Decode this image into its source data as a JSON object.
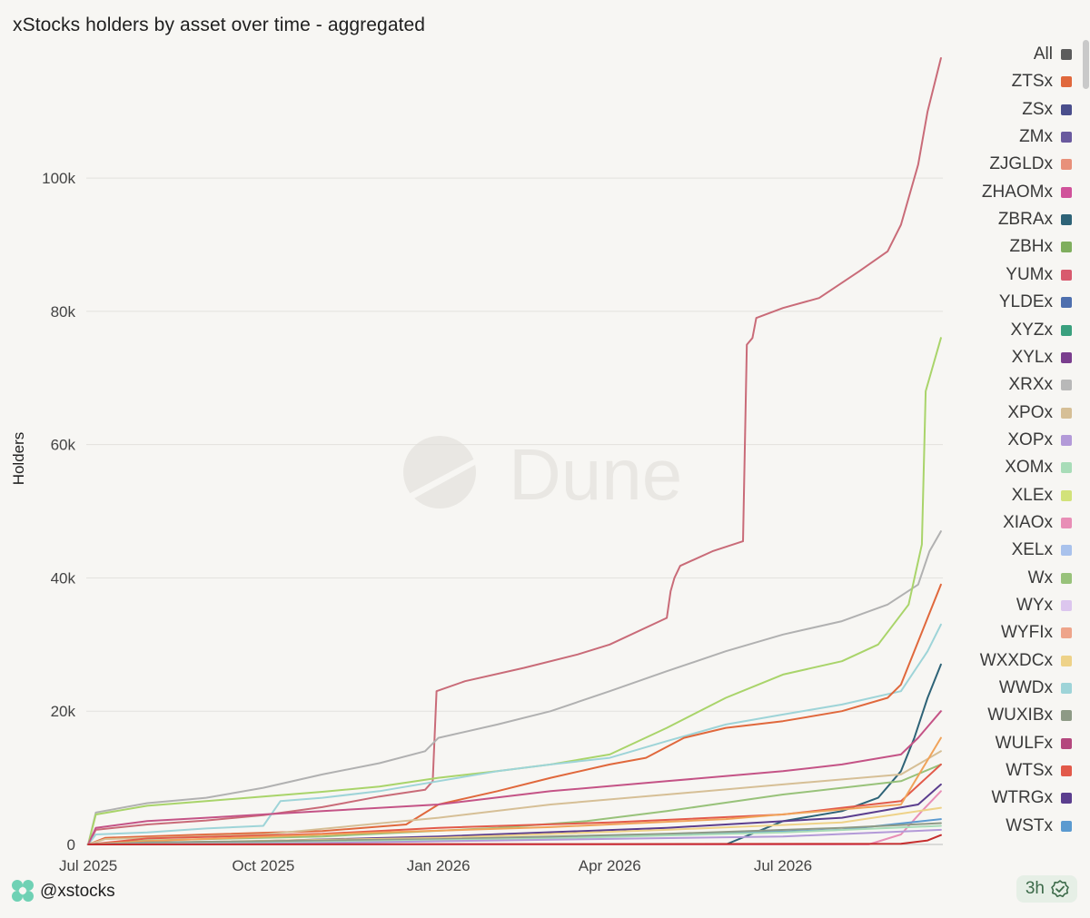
{
  "title": "xStocks holders by asset over time - aggregated",
  "watermark": "Dune",
  "footer": {
    "handle": "@xstocks",
    "refresh": "3h"
  },
  "chart_data": {
    "type": "line",
    "ylabel": "Holders",
    "xlabel": "",
    "ylim": [
      0,
      118000
    ],
    "xlim": [
      "2025-06-30",
      "2026-09-23"
    ],
    "yticks": [
      {
        "value": 0,
        "label": "0"
      },
      {
        "value": 20000,
        "label": "20k"
      },
      {
        "value": 40000,
        "label": "40k"
      },
      {
        "value": 60000,
        "label": "60k"
      },
      {
        "value": 80000,
        "label": "80k"
      },
      {
        "value": 100000,
        "label": "100k"
      }
    ],
    "xticks": [
      {
        "value": "2025-07-01",
        "label": "Jul 2025"
      },
      {
        "value": "2025-10-01",
        "label": "Oct 2025"
      },
      {
        "value": "2026-01-01",
        "label": "Jan 2026"
      },
      {
        "value": "2026-04-01",
        "label": "Apr 2026"
      },
      {
        "value": "2026-07-01",
        "label": "Jul 2026"
      }
    ],
    "grid": true,
    "legend_position": "right",
    "legend": [
      {
        "name": "All",
        "color": "#5c5c5c"
      },
      {
        "name": "ZTSx",
        "color": "#e0683c"
      },
      {
        "name": "ZSx",
        "color": "#4a4e8c"
      },
      {
        "name": "ZMx",
        "color": "#6a5a9e"
      },
      {
        "name": "ZJGLDx",
        "color": "#e8907a"
      },
      {
        "name": "ZHAOMx",
        "color": "#d0529a"
      },
      {
        "name": "ZBRAx",
        "color": "#2e6377"
      },
      {
        "name": "ZBHx",
        "color": "#7fae5e"
      },
      {
        "name": "YUMx",
        "color": "#d85a6e"
      },
      {
        "name": "YLDEx",
        "color": "#4e6fae"
      },
      {
        "name": "XYZx",
        "color": "#3aa07e"
      },
      {
        "name": "XYLx",
        "color": "#7a3e8e"
      },
      {
        "name": "XRXx",
        "color": "#b8b8b8"
      },
      {
        "name": "XPOx",
        "color": "#d6bf96"
      },
      {
        "name": "XOPx",
        "color": "#b39ad8"
      },
      {
        "name": "XOMx",
        "color": "#a8dcb8"
      },
      {
        "name": "XLEx",
        "color": "#d2e27a"
      },
      {
        "name": "XIAOx",
        "color": "#e88eb6"
      },
      {
        "name": "XELx",
        "color": "#a9c2ec"
      },
      {
        "name": "Wx",
        "color": "#98c27a"
      },
      {
        "name": "WYx",
        "color": "#dcc6ee"
      },
      {
        "name": "WYFIx",
        "color": "#eea48a"
      },
      {
        "name": "WXXDCx",
        "color": "#eed288"
      },
      {
        "name": "WWDx",
        "color": "#9ed4d8"
      },
      {
        "name": "WUXIBx",
        "color": "#8e9a86"
      },
      {
        "name": "WULFx",
        "color": "#b4487e"
      },
      {
        "name": "WTSx",
        "color": "#e25a4a"
      },
      {
        "name": "WTRGx",
        "color": "#5b3e8e"
      },
      {
        "name": "WSTx",
        "color": "#5b9ad0"
      }
    ],
    "series": [
      {
        "color": "#c96b78",
        "points": [
          [
            "2025-07-01",
            0
          ],
          [
            "2025-07-05",
            2200
          ],
          [
            "2025-08-01",
            3000
          ],
          [
            "2025-09-01",
            3600
          ],
          [
            "2025-10-01",
            4400
          ],
          [
            "2025-11-01",
            5600
          ],
          [
            "2025-12-01",
            7200
          ],
          [
            "2025-12-25",
            8200
          ],
          [
            "2025-12-29",
            9500
          ],
          [
            "2025-12-31",
            23000
          ],
          [
            "2026-01-15",
            24500
          ],
          [
            "2026-02-15",
            26500
          ],
          [
            "2026-03-15",
            28500
          ],
          [
            "2026-04-01",
            30000
          ],
          [
            "2026-05-01",
            34000
          ],
          [
            "2026-05-03",
            38000
          ],
          [
            "2026-05-05",
            40000
          ],
          [
            "2026-05-08",
            41800
          ],
          [
            "2026-05-25",
            44000
          ],
          [
            "2026-06-10",
            45500
          ],
          [
            "2026-06-12",
            75000
          ],
          [
            "2026-06-15",
            76000
          ],
          [
            "2026-06-17",
            79000
          ],
          [
            "2026-07-01",
            80500
          ],
          [
            "2026-07-20",
            82000
          ],
          [
            "2026-08-10",
            86000
          ],
          [
            "2026-08-25",
            89000
          ],
          [
            "2026-09-01",
            93000
          ],
          [
            "2026-09-10",
            102000
          ],
          [
            "2026-09-15",
            110000
          ],
          [
            "2026-09-22",
            118000
          ]
        ]
      },
      {
        "color": "#b1b1b1",
        "points": [
          [
            "2025-07-01",
            0
          ],
          [
            "2025-07-05",
            4800
          ],
          [
            "2025-08-01",
            6200
          ],
          [
            "2025-09-01",
            7000
          ],
          [
            "2025-10-01",
            8500
          ],
          [
            "2025-11-01",
            10500
          ],
          [
            "2025-12-01",
            12200
          ],
          [
            "2025-12-25",
            14000
          ],
          [
            "2026-01-01",
            16000
          ],
          [
            "2026-02-01",
            18000
          ],
          [
            "2026-03-01",
            20000
          ],
          [
            "2026-04-01",
            23000
          ],
          [
            "2026-05-01",
            26000
          ],
          [
            "2026-06-01",
            29000
          ],
          [
            "2026-07-01",
            31500
          ],
          [
            "2026-08-01",
            33500
          ],
          [
            "2026-08-25",
            36000
          ],
          [
            "2026-09-10",
            39000
          ],
          [
            "2026-09-16",
            44000
          ],
          [
            "2026-09-22",
            47000
          ]
        ]
      },
      {
        "color": "#a9d46a",
        "points": [
          [
            "2025-07-01",
            0
          ],
          [
            "2025-07-05",
            4500
          ],
          [
            "2025-08-01",
            5800
          ],
          [
            "2025-09-01",
            6500
          ],
          [
            "2025-10-01",
            7200
          ],
          [
            "2025-11-01",
            7900
          ],
          [
            "2025-12-01",
            8700
          ],
          [
            "2026-01-01",
            10000
          ],
          [
            "2026-02-01",
            11000
          ],
          [
            "2026-03-01",
            12000
          ],
          [
            "2026-04-01",
            13500
          ],
          [
            "2026-05-01",
            17500
          ],
          [
            "2026-06-01",
            22000
          ],
          [
            "2026-07-01",
            25500
          ],
          [
            "2026-08-01",
            27500
          ],
          [
            "2026-08-20",
            30000
          ],
          [
            "2026-09-05",
            36000
          ],
          [
            "2026-09-12",
            45000
          ],
          [
            "2026-09-14",
            68000
          ],
          [
            "2026-09-22",
            76000
          ]
        ]
      },
      {
        "color": "#9ed4d8",
        "points": [
          [
            "2025-07-01",
            0
          ],
          [
            "2025-07-05",
            1500
          ],
          [
            "2025-08-01",
            1800
          ],
          [
            "2025-09-01",
            2400
          ],
          [
            "2025-10-01",
            2800
          ],
          [
            "2025-10-10",
            6500
          ],
          [
            "2025-11-01",
            7000
          ],
          [
            "2025-12-01",
            8000
          ],
          [
            "2026-01-01",
            9500
          ],
          [
            "2026-02-01",
            11000
          ],
          [
            "2026-03-01",
            12000
          ],
          [
            "2026-04-01",
            13000
          ],
          [
            "2026-05-01",
            15500
          ],
          [
            "2026-06-01",
            18000
          ],
          [
            "2026-07-01",
            19500
          ],
          [
            "2026-08-01",
            21000
          ],
          [
            "2026-09-01",
            23000
          ],
          [
            "2026-09-15",
            29000
          ],
          [
            "2026-09-22",
            33000
          ]
        ]
      },
      {
        "color": "#e0683c",
        "points": [
          [
            "2025-07-01",
            0
          ],
          [
            "2025-07-10",
            1000
          ],
          [
            "2025-09-01",
            1500
          ],
          [
            "2025-11-01",
            2000
          ],
          [
            "2025-12-15",
            3000
          ],
          [
            "2026-01-01",
            6000
          ],
          [
            "2026-02-01",
            8000
          ],
          [
            "2026-03-01",
            10000
          ],
          [
            "2026-04-01",
            12000
          ],
          [
            "2026-04-20",
            13000
          ],
          [
            "2026-05-10",
            16000
          ],
          [
            "2026-06-01",
            17500
          ],
          [
            "2026-07-01",
            18500
          ],
          [
            "2026-08-01",
            20000
          ],
          [
            "2026-08-25",
            22000
          ],
          [
            "2026-09-01",
            24000
          ],
          [
            "2026-09-15",
            34000
          ],
          [
            "2026-09-22",
            39000
          ]
        ]
      },
      {
        "color": "#2e6377",
        "points": [
          [
            "2025-07-01",
            0
          ],
          [
            "2026-06-01",
            0
          ],
          [
            "2026-07-01",
            3500
          ],
          [
            "2026-08-01",
            5000
          ],
          [
            "2026-08-20",
            7000
          ],
          [
            "2026-09-01",
            11000
          ],
          [
            "2026-09-08",
            16000
          ],
          [
            "2026-09-15",
            22000
          ],
          [
            "2026-09-22",
            27000
          ]
        ]
      },
      {
        "color": "#c45386",
        "points": [
          [
            "2025-07-01",
            0
          ],
          [
            "2025-07-05",
            2500
          ],
          [
            "2025-08-01",
            3500
          ],
          [
            "2025-09-01",
            4000
          ],
          [
            "2025-11-01",
            5000
          ],
          [
            "2026-01-01",
            6000
          ],
          [
            "2026-03-01",
            8000
          ],
          [
            "2026-05-01",
            9500
          ],
          [
            "2026-07-01",
            11000
          ],
          [
            "2026-08-01",
            12000
          ],
          [
            "2026-09-01",
            13500
          ],
          [
            "2026-09-10",
            16000
          ],
          [
            "2026-09-22",
            20000
          ]
        ]
      },
      {
        "color": "#d6bf96",
        "points": [
          [
            "2025-07-01",
            0
          ],
          [
            "2025-07-10",
            800
          ],
          [
            "2025-10-01",
            1500
          ],
          [
            "2026-01-01",
            4000
          ],
          [
            "2026-03-01",
            6000
          ],
          [
            "2026-05-01",
            7500
          ],
          [
            "2026-07-01",
            9000
          ],
          [
            "2026-09-01",
            10500
          ],
          [
            "2026-09-22",
            14000
          ]
        ]
      },
      {
        "color": "#98c27a",
        "points": [
          [
            "2025-07-01",
            0
          ],
          [
            "2025-08-01",
            600
          ],
          [
            "2025-11-01",
            1200
          ],
          [
            "2026-02-01",
            2500
          ],
          [
            "2026-03-20",
            3500
          ],
          [
            "2026-05-01",
            5000
          ],
          [
            "2026-07-01",
            7500
          ],
          [
            "2026-09-01",
            9500
          ],
          [
            "2026-09-22",
            12000
          ]
        ]
      },
      {
        "color": "#e25a4a",
        "points": [
          [
            "2025-07-01",
            0
          ],
          [
            "2025-08-01",
            900
          ],
          [
            "2025-11-01",
            1600
          ],
          [
            "2026-01-01",
            2500
          ],
          [
            "2026-04-01",
            3300
          ],
          [
            "2026-07-01",
            4500
          ],
          [
            "2026-09-01",
            6500
          ],
          [
            "2026-09-22",
            12000
          ]
        ]
      },
      {
        "color": "#5b3e8e",
        "points": [
          [
            "2025-07-01",
            0
          ],
          [
            "2025-09-01",
            300
          ],
          [
            "2026-01-01",
            1200
          ],
          [
            "2026-05-01",
            2500
          ],
          [
            "2026-08-01",
            4000
          ],
          [
            "2026-09-10",
            6000
          ],
          [
            "2026-09-22",
            9000
          ]
        ]
      },
      {
        "color": "#f0a35a",
        "points": [
          [
            "2025-07-01",
            0
          ],
          [
            "2025-08-01",
            500
          ],
          [
            "2025-12-01",
            1800
          ],
          [
            "2026-03-01",
            2600
          ],
          [
            "2026-06-01",
            3800
          ],
          [
            "2026-09-01",
            6000
          ],
          [
            "2026-09-22",
            16000
          ]
        ]
      },
      {
        "color": "#e88eb6",
        "points": [
          [
            "2025-07-01",
            0
          ],
          [
            "2026-08-15",
            0
          ],
          [
            "2026-09-01",
            1500
          ],
          [
            "2026-09-12",
            5000
          ],
          [
            "2026-09-22",
            8000
          ]
        ]
      },
      {
        "color": "#eed288",
        "points": [
          [
            "2025-07-01",
            0
          ],
          [
            "2025-09-01",
            400
          ],
          [
            "2026-01-01",
            1000
          ],
          [
            "2026-05-01",
            2200
          ],
          [
            "2026-08-01",
            3300
          ],
          [
            "2026-09-22",
            5500
          ]
        ]
      },
      {
        "color": "#5b9ad0",
        "points": [
          [
            "2025-07-01",
            0
          ],
          [
            "2025-08-01",
            200
          ],
          [
            "2026-01-01",
            700
          ],
          [
            "2026-05-01",
            1400
          ],
          [
            "2026-08-01",
            2200
          ],
          [
            "2026-09-22",
            3800
          ]
        ]
      },
      {
        "color": "#8e9a86",
        "points": [
          [
            "2025-07-01",
            0
          ],
          [
            "2025-08-01",
            300
          ],
          [
            "2026-01-01",
            800
          ],
          [
            "2026-05-01",
            1600
          ],
          [
            "2026-08-01",
            2500
          ],
          [
            "2026-09-22",
            3200
          ]
        ]
      },
      {
        "color": "#a8dcb8",
        "points": [
          [
            "2025-07-01",
            0
          ],
          [
            "2025-10-01",
            200
          ],
          [
            "2026-03-01",
            900
          ],
          [
            "2026-07-01",
            1800
          ],
          [
            "2026-09-22",
            2800
          ]
        ]
      },
      {
        "color": "#b39ad8",
        "points": [
          [
            "2025-07-01",
            0
          ],
          [
            "2025-10-01",
            100
          ],
          [
            "2026-02-01",
            600
          ],
          [
            "2026-07-01",
            1200
          ],
          [
            "2026-09-22",
            2200
          ]
        ]
      },
      {
        "color": "#c62d2d",
        "points": [
          [
            "2025-07-01",
            0
          ],
          [
            "2026-09-01",
            100
          ],
          [
            "2026-09-15",
            600
          ],
          [
            "2026-09-22",
            1400
          ]
        ]
      }
    ]
  }
}
